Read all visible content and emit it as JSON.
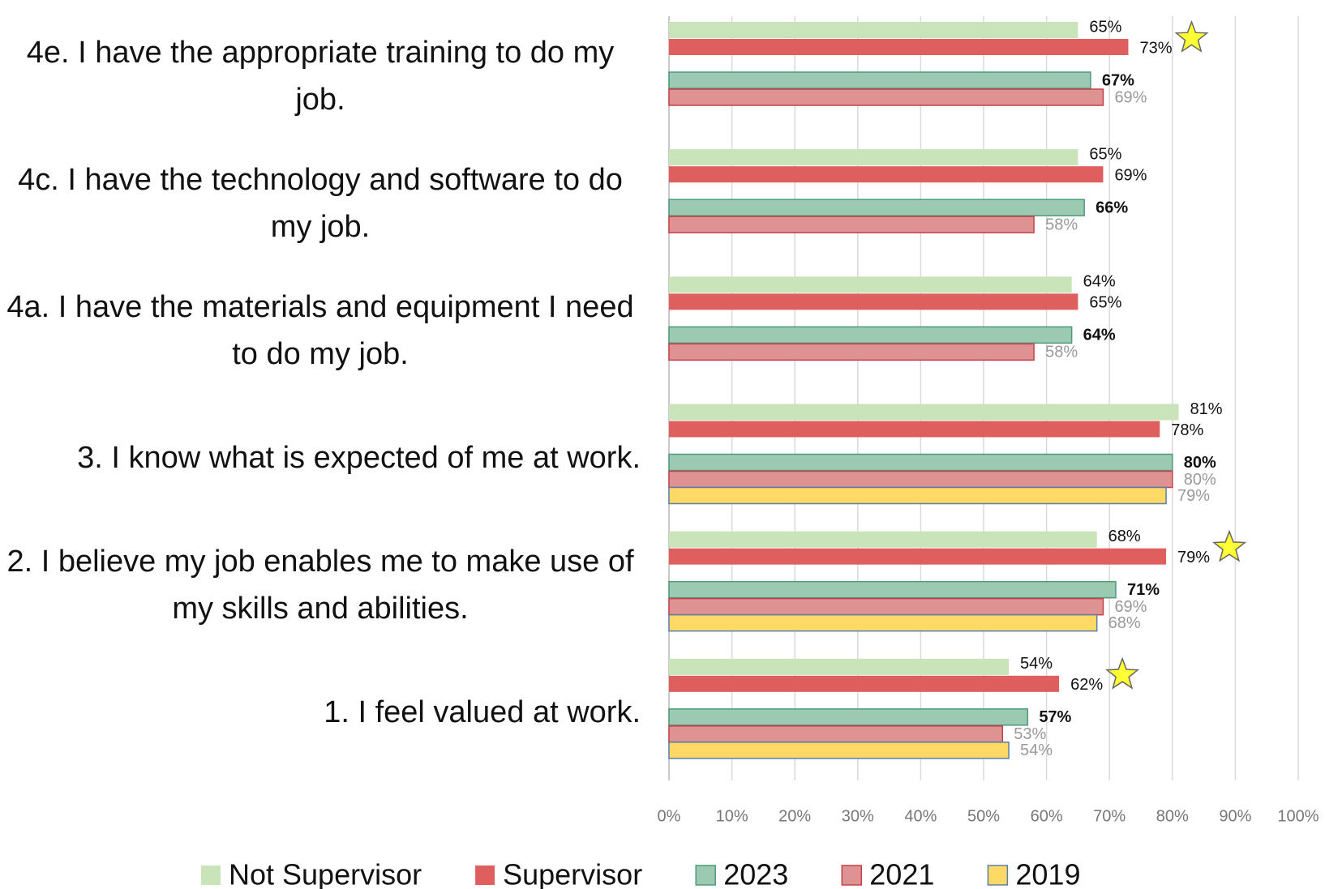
{
  "chart_data": {
    "type": "hbar",
    "categories": [
      "4e. I have the appropriate training to do my job.",
      "4c. I have the technology and software to do my job.",
      "4a. I have the materials and equipment I need to do my job.",
      "3. I know what is expected of me at work.",
      "2. I believe my job enables me to make use of my skills and abilities.",
      "1. I feel valued at work."
    ],
    "series": [
      {
        "name": "Not Supervisor",
        "color": "#c9e4b8",
        "label_color": "#111111",
        "values": [
          65,
          65,
          64,
          81,
          68,
          54
        ],
        "value_labels": [
          "65%",
          "65%",
          "64%",
          "81%",
          "68%",
          "54%"
        ]
      },
      {
        "name": "Supervisor",
        "color": "#df5f5f",
        "label_color": "#111111",
        "values": [
          73,
          69,
          65,
          78,
          79,
          62
        ],
        "value_labels": [
          "73%",
          "69%",
          "65%",
          "78%",
          "79%",
          "62%"
        ],
        "starred": [
          true,
          false,
          false,
          false,
          true,
          true
        ]
      },
      {
        "name": "2023",
        "color": "#9cc9b1",
        "stroke": "#4f9a7b",
        "label_color": "#111111",
        "label_bold": true,
        "values": [
          67,
          66,
          64,
          80,
          71,
          57
        ],
        "value_labels": [
          "67%",
          "66%",
          "64%",
          "80%",
          "71%",
          "57%"
        ]
      },
      {
        "name": "2021",
        "color": "#de9292",
        "stroke": "#c4414b",
        "label_color": "#999999",
        "values": [
          69,
          58,
          58,
          80,
          69,
          53
        ],
        "value_labels": [
          "69%",
          "58%",
          "58%",
          "80%",
          "69%",
          "53%"
        ]
      },
      {
        "name": "2019",
        "color": "#ffd966",
        "stroke": "#5b7fa8",
        "label_color": "#999999",
        "values": [
          null,
          null,
          null,
          79,
          68,
          54
        ],
        "value_labels": [
          null,
          null,
          null,
          "79%",
          "68%",
          "54%"
        ]
      }
    ],
    "xlim": [
      0,
      100
    ],
    "xticks": [
      {
        "value": 0,
        "label": "0%"
      },
      {
        "value": 10,
        "label": "10%"
      },
      {
        "value": 20,
        "label": "20%"
      },
      {
        "value": 30,
        "label": "30%"
      },
      {
        "value": 40,
        "label": "40%"
      },
      {
        "value": 50,
        "label": "50%"
      },
      {
        "value": 60,
        "label": "60%"
      },
      {
        "value": 70,
        "label": "70%"
      },
      {
        "value": 80,
        "label": "80%"
      },
      {
        "value": 90,
        "label": "90%"
      },
      {
        "value": 100,
        "label": "100%"
      }
    ],
    "grid": true,
    "legend": "bottom"
  }
}
